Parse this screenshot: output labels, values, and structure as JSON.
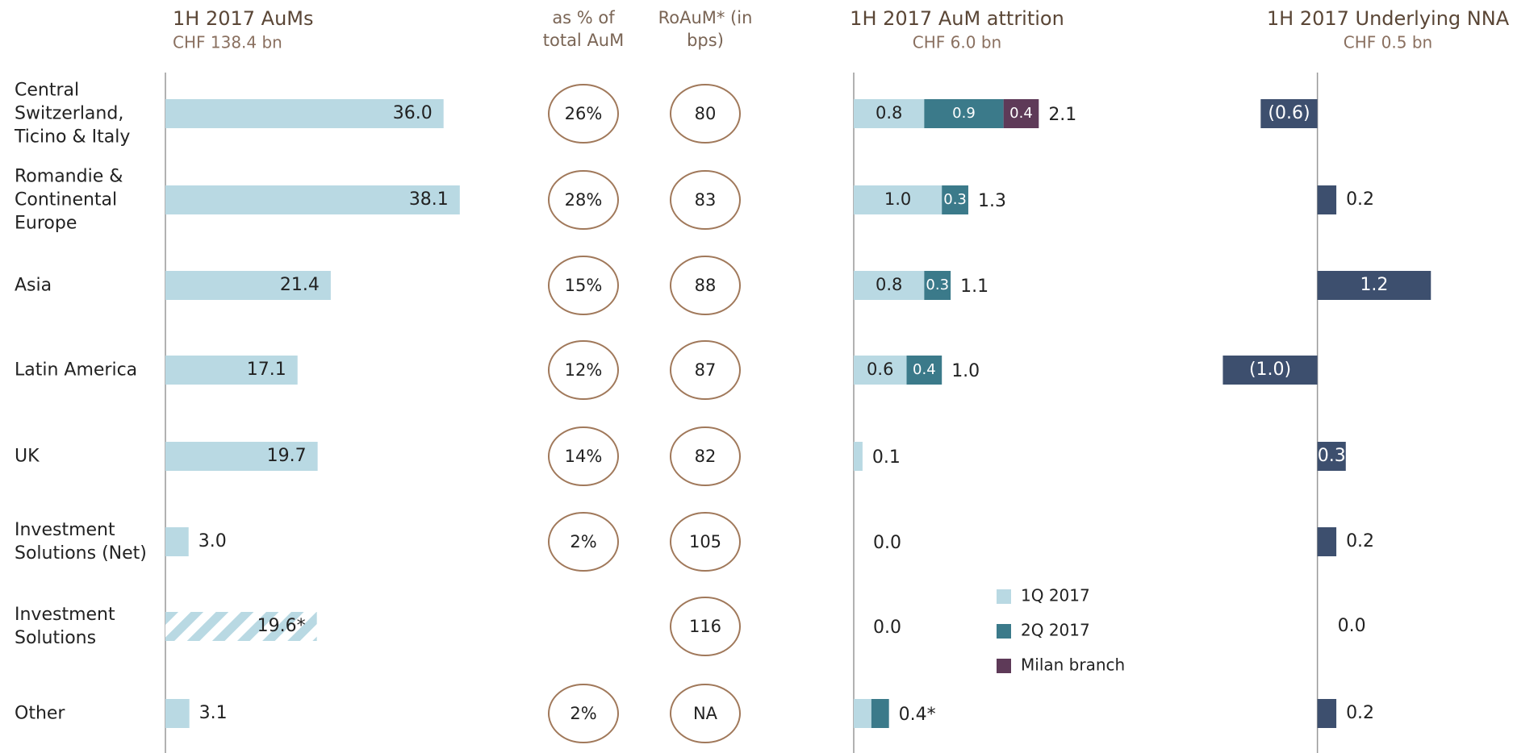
{
  "chart_data": [
    {
      "type": "hbar",
      "title": "1H 2017 AuMs",
      "subtitle": "CHF 138.4 bn",
      "categories": [
        "Central Switzerland, Ticino & Italy",
        "Romandie & Continental Europe",
        "Asia",
        "Latin America",
        "UK",
        "Investment Solutions (Net)",
        "Investment Solutions",
        "Other"
      ],
      "values": [
        36.0,
        38.1,
        21.4,
        17.1,
        19.7,
        3.0,
        19.6,
        3.1
      ],
      "value_labels": [
        "36.0",
        "38.1",
        "21.4",
        "17.1",
        "19.7",
        "3.0",
        "19.6*",
        "3.1"
      ],
      "patterns": [
        null,
        null,
        null,
        null,
        null,
        null,
        "hatch",
        null
      ],
      "color": "#b9d9e3",
      "xlim": [
        0,
        40
      ]
    },
    {
      "type": "ellipse-column",
      "header": "as % of total AuM",
      "values": [
        26,
        28,
        15,
        12,
        14,
        2,
        null,
        2
      ],
      "value_labels": [
        "26%",
        "28%",
        "15%",
        "12%",
        "14%",
        "2%",
        null,
        "2%"
      ]
    },
    {
      "type": "ellipse-column",
      "header": "RoAuM* (in bps)",
      "values": [
        80,
        83,
        88,
        87,
        82,
        105,
        116,
        null
      ],
      "value_labels": [
        "80",
        "83",
        "88",
        "87",
        "82",
        "105",
        "116",
        "NA"
      ]
    },
    {
      "type": "stacked-hbar",
      "title": "1H 2017 AuM attrition",
      "subtitle": "CHF 6.0 bn",
      "series": [
        {
          "name": "1Q 2017",
          "color": "#b9d9e3",
          "values": [
            0.8,
            1.0,
            0.8,
            0.6,
            0.1,
            0.0,
            0.0,
            0.2
          ],
          "value_labels": [
            "0.8",
            "1.0",
            "0.8",
            "0.6",
            null,
            null,
            null,
            null
          ]
        },
        {
          "name": "2Q 2017",
          "color": "#3b7a8a",
          "values": [
            0.9,
            0.3,
            0.3,
            0.4,
            null,
            null,
            null,
            0.2
          ],
          "value_labels": [
            "0.9",
            "0.3",
            "0.3",
            "0.4",
            null,
            null,
            null,
            null
          ]
        },
        {
          "name": "Milan branch",
          "color": "#5e3a58",
          "values": [
            0.4,
            null,
            null,
            null,
            null,
            null,
            null,
            null
          ],
          "value_labels": [
            "0.4",
            null,
            null,
            null,
            null,
            null,
            null,
            null
          ]
        }
      ],
      "totals": [
        2.1,
        1.3,
        1.1,
        1.0,
        0.1,
        0.0,
        0.0,
        0.4
      ],
      "total_labels": [
        "2.1",
        "1.3",
        "1.1",
        "1.0",
        "0.1",
        "0.0",
        "0.0",
        "0.4*"
      ],
      "xlim": [
        0,
        2.5
      ]
    },
    {
      "type": "hbar",
      "title": "1H 2017 Underlying NNA",
      "subtitle": "CHF 0.5 bn",
      "values": [
        -0.6,
        0.2,
        1.2,
        -1.0,
        0.3,
        0.2,
        0.0,
        0.2
      ],
      "value_labels": [
        "(0.6)",
        "0.2",
        "1.2",
        "(1.0)",
        "0.3",
        "0.2",
        "0.0",
        "0.2"
      ],
      "color": "#3d4f6e",
      "xlim": [
        -1.2,
        2.0
      ]
    }
  ]
}
